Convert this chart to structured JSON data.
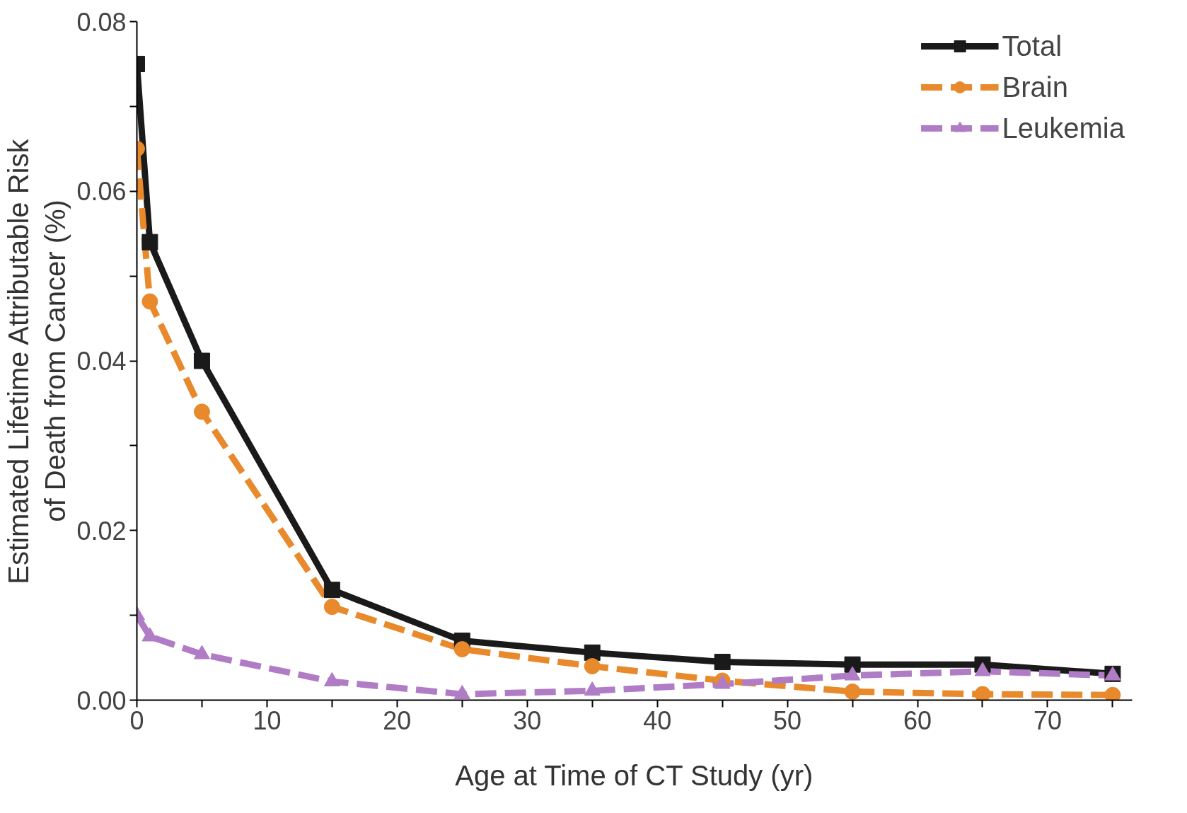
{
  "chart_data": {
    "type": "line",
    "xlabel": "Age at Time of CT Study (yr)",
    "ylabel": "Estimated Lifetime Attributable Risk\nof Death from Cancer (%)",
    "x": [
      0,
      1,
      5,
      15,
      25,
      35,
      45,
      55,
      65,
      75
    ],
    "series": [
      {
        "name": "Total",
        "color": "#1a1a1a",
        "marker": "square",
        "line_style": "solid",
        "values": [
          0.075,
          0.054,
          0.04,
          0.013,
          0.007,
          0.0056,
          0.0045,
          0.0042,
          0.0042,
          0.0031
        ]
      },
      {
        "name": "Brain",
        "color": "#e8892b",
        "marker": "circle",
        "line_style": "dashed",
        "values": [
          0.065,
          0.047,
          0.034,
          0.011,
          0.006,
          0.004,
          0.0023,
          0.001,
          0.0007,
          0.0006
        ]
      },
      {
        "name": "Leukemia",
        "color": "#b07cc6",
        "marker": "triangle",
        "line_style": "dashed",
        "values": [
          0.01,
          0.0075,
          0.0054,
          0.0022,
          0.0007,
          0.0011,
          0.0019,
          0.0029,
          0.0034,
          0.0029
        ]
      }
    ],
    "xlim": [
      0,
      76.5
    ],
    "ylim": [
      0,
      0.08
    ],
    "xticks": [
      0,
      {
        "value": 5,
        "label": null
      },
      10,
      {
        "value": 15,
        "label": null
      },
      20,
      {
        "value": 25,
        "label": null
      },
      30,
      {
        "value": 35,
        "label": null
      },
      40,
      {
        "value": 45,
        "label": null
      },
      50,
      {
        "value": 55,
        "label": null
      },
      60,
      {
        "value": 65,
        "label": null
      },
      70,
      {
        "value": 75,
        "label": null
      }
    ],
    "yticks": [
      {
        "value": 0,
        "label": "0.00"
      },
      {
        "value": 0.01,
        "label": null
      },
      {
        "value": 0.02,
        "label": "0.02"
      },
      {
        "value": 0.03,
        "label": null
      },
      {
        "value": 0.04,
        "label": "0.04"
      },
      {
        "value": 0.05,
        "label": null
      },
      {
        "value": 0.06,
        "label": "0.06"
      },
      {
        "value": 0.07,
        "label": null
      },
      {
        "value": 0.08,
        "label": "0.08"
      }
    ],
    "grid": false,
    "legend": "top right"
  }
}
